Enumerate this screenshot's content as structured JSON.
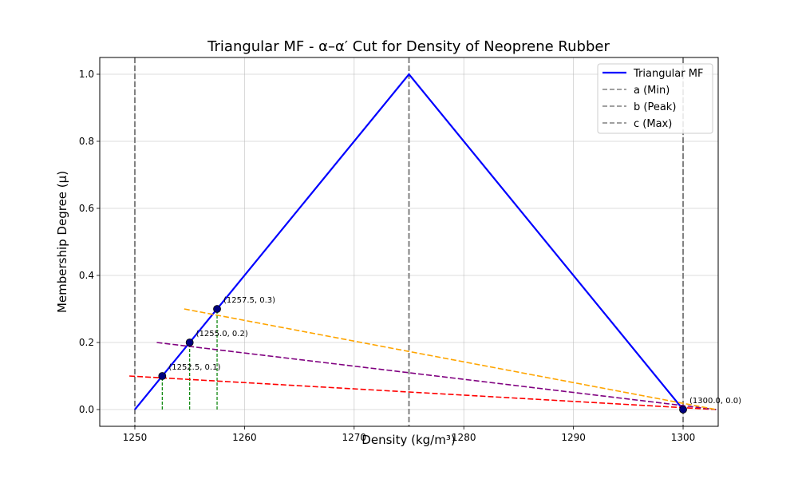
{
  "chart_data": {
    "type": "line",
    "title": "Triangular MF - α–α′ Cut for Density of Neoprene Rubber",
    "xlabel": "Density (kg/m³)",
    "ylabel": "Membership Degree (μ)",
    "xlim": [
      1246.8,
      1303.2
    ],
    "ylim": [
      -0.05,
      1.05
    ],
    "xticks": [
      1250,
      1260,
      1270,
      1280,
      1290,
      1300
    ],
    "xtick_labels": [
      "1250",
      "1260",
      "1270",
      "1280",
      "1290",
      "1300"
    ],
    "yticks": [
      0.0,
      0.2,
      0.4,
      0.6,
      0.8,
      1.0
    ],
    "ytick_labels": [
      "0.0",
      "0.2",
      "0.4",
      "0.6",
      "0.8",
      "1.0"
    ],
    "grid": true,
    "legend_position": "top-right",
    "triangular_mf": {
      "name": "Triangular MF",
      "color": "#0000ff",
      "x": [
        1250,
        1275,
        1300
      ],
      "y": [
        0,
        1,
        0
      ]
    },
    "vertical_lines": [
      {
        "name": "a (Min)",
        "x": 1250,
        "color": "#808080"
      },
      {
        "name": "b (Peak)",
        "x": 1275,
        "color": "#808080"
      },
      {
        "name": "c (Max)",
        "x": 1300,
        "color": "#808080"
      }
    ],
    "cut_lines": [
      {
        "color": "#ff0000",
        "x": [
          1249.5,
          1303
        ],
        "y": [
          0.1,
          0.0
        ]
      },
      {
        "color": "#800080",
        "x": [
          1252,
          1303
        ],
        "y": [
          0.2,
          0.0
        ]
      },
      {
        "color": "#ffa500",
        "x": [
          1254.5,
          1303
        ],
        "y": [
          0.3,
          0.0
        ]
      }
    ],
    "drop_lines": [
      {
        "x": 1252.5,
        "y": 0.1,
        "color": "#008000"
      },
      {
        "x": 1255.0,
        "y": 0.2,
        "color": "#008000"
      },
      {
        "x": 1257.5,
        "y": 0.3,
        "color": "#008000"
      }
    ],
    "points": [
      {
        "x": 1252.5,
        "y": 0.1,
        "label": "(1252.5, 0.1)"
      },
      {
        "x": 1255.0,
        "y": 0.2,
        "label": "(1255.0, 0.2)"
      },
      {
        "x": 1257.5,
        "y": 0.3,
        "label": "(1257.5, 0.3)"
      },
      {
        "x": 1300.0,
        "y": 0.0,
        "label": "(1300.0, 0.0)"
      }
    ]
  }
}
